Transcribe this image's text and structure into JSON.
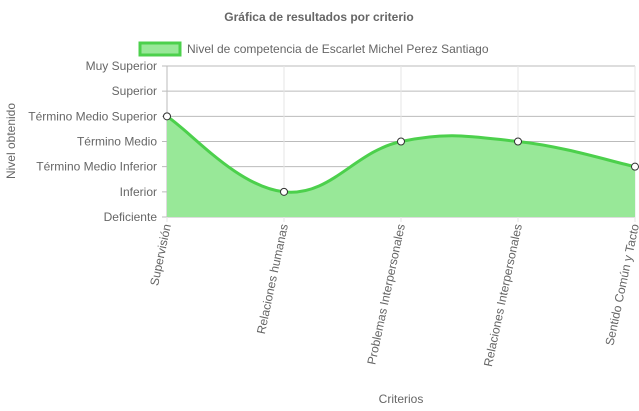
{
  "chart_data": {
    "type": "area",
    "title": "Gráfica de resultados por criterio",
    "xlabel": "Criterios",
    "ylabel": "Nivel obtenido",
    "categories": [
      "Supervisión",
      "Relaciones humanas",
      "Problemas Interpersonales",
      "Relaciones Interpersonales",
      "Sentido Común y Tacto"
    ],
    "y_levels": [
      "Deficiente",
      "Inferior",
      "Término Medio Inferior",
      "Término Medio",
      "Término Medio Superior",
      "Superior",
      "Muy Superior"
    ],
    "series": [
      {
        "name": "Nivel de competencia de Escarlet Michel Perez Santiago",
        "values": [
          4,
          1,
          3,
          3,
          2
        ]
      }
    ],
    "ylim": [
      0,
      6
    ],
    "grid": true,
    "legend": "top",
    "colors": {
      "line": "#4cd04c",
      "fill": "#98e898",
      "grid": "#bbbbbb",
      "point_fill": "#ffffff",
      "point_stroke": "#333333"
    }
  }
}
